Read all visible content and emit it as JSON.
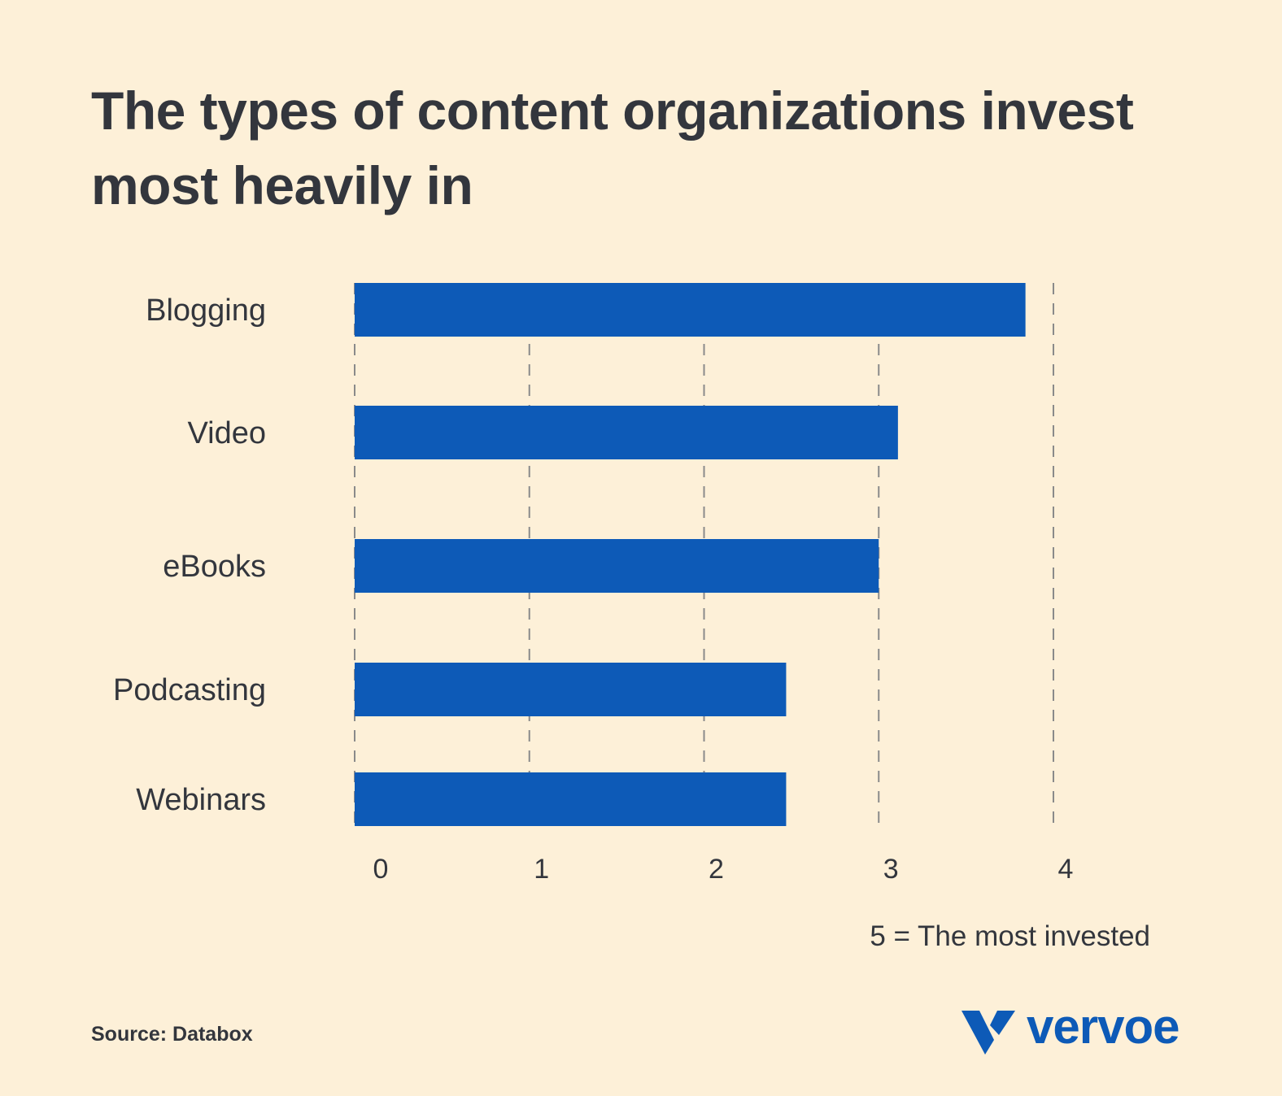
{
  "chart_data": {
    "type": "bar",
    "orientation": "horizontal",
    "title": "The types of content organizations invest most heavily in",
    "categories": [
      "Blogging",
      "Video",
      "eBooks",
      "Podcasting",
      "Webinars"
    ],
    "values": [
      3.84,
      3.11,
      3.0,
      2.47,
      2.47
    ],
    "xticks": [
      "0",
      "1",
      "2",
      "3",
      "4"
    ],
    "xlim": [
      0,
      4
    ],
    "grid": "vertical dashed",
    "note": "5 = The most invested",
    "bar_color": "#0d5ab7"
  },
  "source": "Source: Databox",
  "logo": {
    "text": "vervoe",
    "icon": "vervoe-v-logo-icon",
    "color": "#0d5ab7"
  }
}
